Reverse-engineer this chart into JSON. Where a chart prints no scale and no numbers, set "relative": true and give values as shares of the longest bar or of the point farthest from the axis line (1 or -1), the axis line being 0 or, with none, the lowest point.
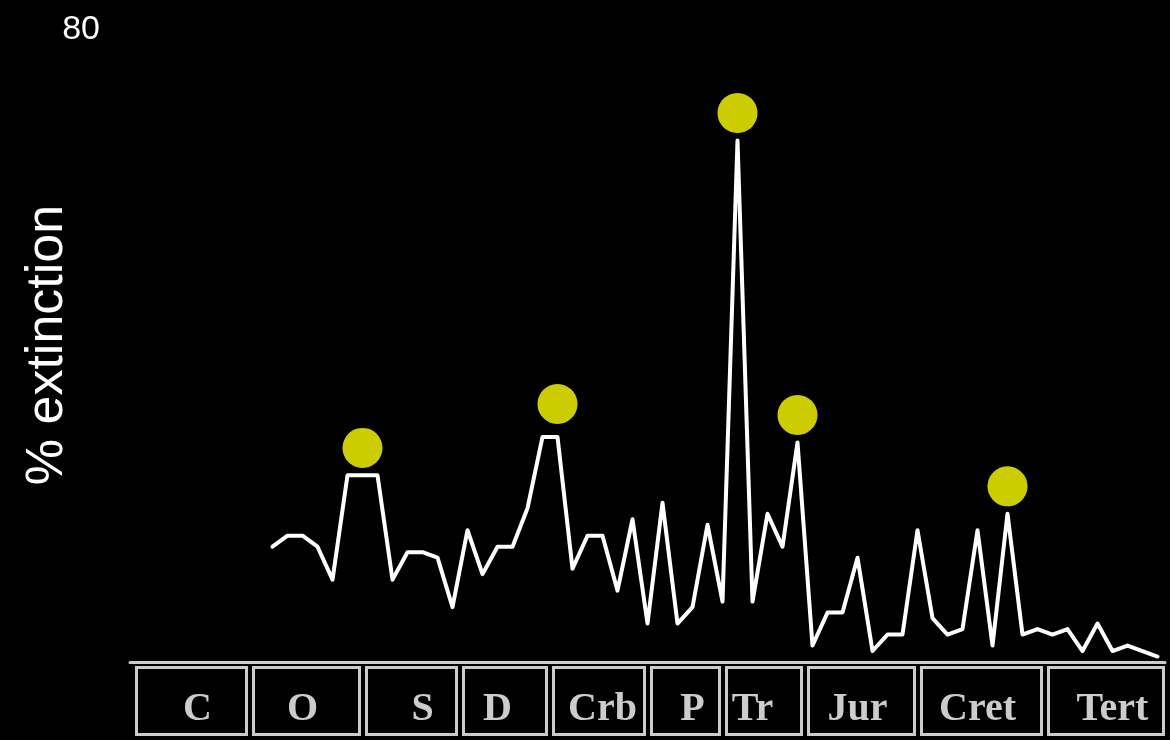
{
  "chart_data": {
    "type": "line",
    "ylabel": "% extinction",
    "relative": true,
    "tick_labels": "x",
    "grid": false,
    "annotations": [
      "80"
    ],
    "categories": [
      null,
      null,
      null,
      null,
      "C",
      null,
      null,
      null,
      null,
      null,
      null,
      "O",
      null,
      null,
      null,
      null,
      null,
      null,
      null,
      "S",
      null,
      null,
      null,
      null,
      "D",
      null,
      null,
      null,
      null,
      null,
      null,
      "Crb",
      null,
      null,
      null,
      null,
      null,
      "P",
      null,
      null,
      null,
      "Tr",
      null,
      null,
      null,
      null,
      null,
      null,
      "Jur",
      null,
      null,
      null,
      null,
      null,
      null,
      null,
      "Cret",
      null,
      null,
      null,
      null,
      null,
      null,
      null,
      null,
      "Tert",
      null,
      null,
      null
    ],
    "series": [
      {
        "color": "#ffffff",
        "marker": "none",
        "values": [
          null,
          null,
          null,
          null,
          null,
          null,
          null,
          null,
          null,
          0.21,
          0.23,
          0.23,
          0.21,
          0.15,
          0.34,
          0.34,
          0.34,
          0.15,
          0.2,
          0.2,
          0.19,
          0.1,
          0.24,
          0.16,
          0.21,
          0.21,
          0.28,
          0.41,
          0.41,
          0.17,
          0.23,
          0.23,
          0.13,
          0.26,
          0.07,
          0.29,
          0.07,
          0.1,
          0.25,
          0.11,
          0.95,
          0.11,
          0.27,
          0.21,
          0.4,
          0.03,
          0.09,
          0.09,
          0.19,
          0.02,
          0.05,
          0.05,
          0.24,
          0.08,
          0.05,
          0.06,
          0.24,
          0.03,
          0.27,
          0.05,
          0.06,
          0.05,
          0.06,
          0.02,
          0.07,
          0.02,
          0.03,
          0.02,
          0.01
        ]
      },
      {
        "type": "scatter",
        "color": "#ffff00",
        "marker": "circle",
        "values": [
          null,
          null,
          null,
          null,
          null,
          null,
          null,
          null,
          null,
          null,
          null,
          null,
          null,
          null,
          null,
          0.39,
          null,
          null,
          null,
          null,
          null,
          null,
          null,
          null,
          null,
          null,
          null,
          null,
          0.47,
          null,
          null,
          null,
          null,
          null,
          null,
          null,
          null,
          null,
          null,
          null,
          1,
          null,
          null,
          null,
          0.45,
          null,
          null,
          null,
          null,
          null,
          null,
          null,
          null,
          null,
          null,
          null,
          null,
          null,
          0.32,
          null,
          null,
          null,
          null,
          null,
          null,
          null,
          null,
          null,
          null
        ]
      }
    ]
  }
}
